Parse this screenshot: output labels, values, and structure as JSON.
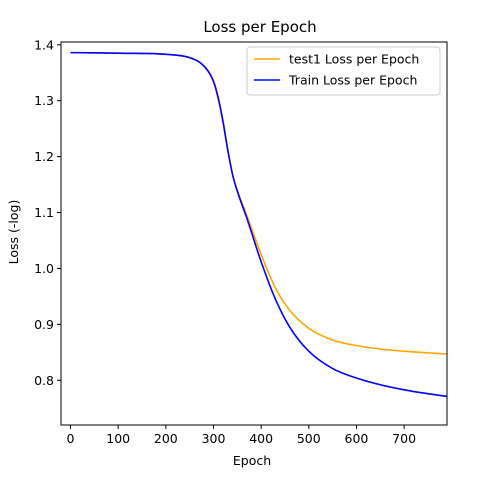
{
  "chart_data": {
    "type": "line",
    "title": "Loss per Epoch",
    "xlabel": "Epoch",
    "ylabel": "Loss (-log)",
    "xlim": [
      -20,
      790
    ],
    "ylim": [
      0.72,
      1.405
    ],
    "xticks": [
      0,
      100,
      200,
      300,
      400,
      500,
      600,
      700
    ],
    "yticks": [
      0.8,
      0.9,
      1.0,
      1.1,
      1.2,
      1.3,
      1.4
    ],
    "ytick_labels": [
      "0.8",
      "0.9",
      "1.0",
      "1.1",
      "1.2",
      "1.3",
      "1.4"
    ],
    "grid": false,
    "legend_position": "top-right",
    "series": [
      {
        "name": "test1 Loss per Epoch",
        "color": "#ffa500",
        "x": [
          0,
          100,
          200,
          250,
          280,
          300,
          310,
          320,
          330,
          340,
          350,
          370,
          400,
          430,
          460,
          500,
          550,
          600,
          650,
          700,
          750,
          790
        ],
        "y": [
          1.386,
          1.385,
          1.383,
          1.377,
          1.362,
          1.333,
          1.302,
          1.26,
          1.21,
          1.168,
          1.14,
          1.095,
          1.025,
          0.965,
          0.925,
          0.893,
          0.872,
          0.862,
          0.856,
          0.852,
          0.849,
          0.847
        ]
      },
      {
        "name": "Train Loss per Epoch",
        "color": "#0000ff",
        "x": [
          0,
          100,
          200,
          250,
          280,
          300,
          310,
          320,
          330,
          340,
          350,
          370,
          400,
          430,
          460,
          500,
          550,
          600,
          650,
          700,
          750,
          790
        ],
        "y": [
          1.386,
          1.385,
          1.383,
          1.377,
          1.362,
          1.335,
          1.305,
          1.263,
          1.212,
          1.168,
          1.138,
          1.09,
          1.012,
          0.945,
          0.895,
          0.852,
          0.821,
          0.804,
          0.792,
          0.783,
          0.776,
          0.771
        ]
      }
    ]
  }
}
